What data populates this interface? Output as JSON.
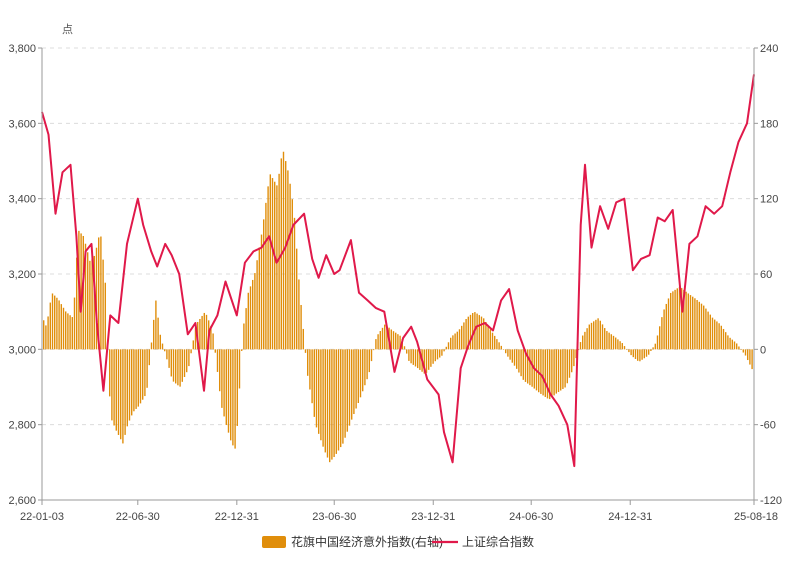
{
  "chart_data": {
    "type": "bar+line",
    "unit_label_left": "点",
    "left_axis": {
      "ylim": [
        2600,
        3800
      ],
      "ticks": [
        "2,600",
        "2,800",
        "3,000",
        "3,200",
        "3,400",
        "3,600",
        "3,800"
      ]
    },
    "right_axis": {
      "ylim": [
        -120,
        240
      ],
      "ticks": [
        "-120",
        "-60",
        "0",
        "60",
        "120",
        "180",
        "240"
      ]
    },
    "x_axis": {
      "ticks": [
        "22-01-03",
        "22-06-30",
        "22-12-31",
        "23-06-30",
        "23-12-31",
        "24-06-30",
        "24-12-31",
        "25-08-18"
      ]
    },
    "grid": "horizontal dashed",
    "legend_position": "bottom-center",
    "colors": {
      "bars": "#E08E0B",
      "line": "#E0194A",
      "axis": "#9a9a9a",
      "grid": "#d9d9d9"
    },
    "series": [
      {
        "name": "花旗中国经济意外指数(右轴)",
        "kind": "bar",
        "axis": "right",
        "points": [
          [
            "22-01-03",
            25
          ],
          [
            "22-01-10",
            18
          ],
          [
            "22-01-20",
            45
          ],
          [
            "22-02-01",
            40
          ],
          [
            "22-02-15",
            30
          ],
          [
            "22-03-01",
            25
          ],
          [
            "22-03-10",
            95
          ],
          [
            "22-03-20",
            90
          ],
          [
            "22-04-01",
            70
          ],
          [
            "22-04-10",
            75
          ],
          [
            "22-04-20",
            95
          ],
          [
            "22-04-30",
            50
          ],
          [
            "22-05-05",
            -20
          ],
          [
            "22-05-10",
            -55
          ],
          [
            "22-05-20",
            -65
          ],
          [
            "22-06-01",
            -75
          ],
          [
            "22-06-10",
            -60
          ],
          [
            "22-06-20",
            -50
          ],
          [
            "22-07-01",
            -45
          ],
          [
            "22-07-15",
            -35
          ],
          [
            "22-08-01",
            40
          ],
          [
            "22-08-10",
            10
          ],
          [
            "22-08-20",
            -5
          ],
          [
            "22-09-01",
            -25
          ],
          [
            "22-09-15",
            -30
          ],
          [
            "22-10-01",
            -15
          ],
          [
            "22-10-15",
            20
          ],
          [
            "22-11-01",
            30
          ],
          [
            "22-11-15",
            15
          ],
          [
            "22-12-01",
            -45
          ],
          [
            "22-12-10",
            -60
          ],
          [
            "22-12-20",
            -75
          ],
          [
            "22-12-28",
            -80
          ],
          [
            "23-01-10",
            15
          ],
          [
            "23-01-20",
            45
          ],
          [
            "23-02-01",
            60
          ],
          [
            "23-02-15",
            95
          ],
          [
            "23-03-01",
            140
          ],
          [
            "23-03-15",
            130
          ],
          [
            "23-03-25",
            160
          ],
          [
            "23-04-05",
            140
          ],
          [
            "23-04-15",
            110
          ],
          [
            "23-04-25",
            50
          ],
          [
            "23-05-10",
            -20
          ],
          [
            "23-05-25",
            -60
          ],
          [
            "23-06-10",
            -80
          ],
          [
            "23-06-20",
            -90
          ],
          [
            "23-06-30",
            -85
          ],
          [
            "23-07-15",
            -75
          ],
          [
            "23-08-01",
            -55
          ],
          [
            "23-08-15",
            -40
          ],
          [
            "23-09-01",
            -20
          ],
          [
            "23-09-15",
            10
          ],
          [
            "23-10-01",
            20
          ],
          [
            "23-10-15",
            15
          ],
          [
            "23-11-01",
            10
          ],
          [
            "23-11-15",
            -10
          ],
          [
            "23-12-01",
            -15
          ],
          [
            "23-12-15",
            -20
          ],
          [
            "24-01-01",
            -10
          ],
          [
            "24-01-15",
            -5
          ],
          [
            "24-02-01",
            10
          ],
          [
            "24-02-15",
            15
          ],
          [
            "24-03-01",
            25
          ],
          [
            "24-03-15",
            30
          ],
          [
            "24-04-01",
            25
          ],
          [
            "24-04-15",
            15
          ],
          [
            "24-05-01",
            5
          ],
          [
            "24-05-15",
            -5
          ],
          [
            "24-06-01",
            -15
          ],
          [
            "24-06-15",
            -25
          ],
          [
            "24-07-01",
            -30
          ],
          [
            "24-07-15",
            -35
          ],
          [
            "24-08-01",
            -40
          ],
          [
            "24-08-15",
            -35
          ],
          [
            "24-09-01",
            -30
          ],
          [
            "24-09-15",
            -15
          ],
          [
            "24-10-01",
            10
          ],
          [
            "24-10-15",
            20
          ],
          [
            "24-11-01",
            25
          ],
          [
            "24-11-15",
            15
          ],
          [
            "24-12-01",
            10
          ],
          [
            "24-12-15",
            5
          ],
          [
            "25-01-01",
            -5
          ],
          [
            "25-01-15",
            -10
          ],
          [
            "25-02-01",
            -5
          ],
          [
            "25-02-15",
            5
          ],
          [
            "25-03-01",
            30
          ],
          [
            "25-03-15",
            45
          ],
          [
            "25-04-01",
            50
          ],
          [
            "25-04-15",
            45
          ],
          [
            "25-05-01",
            40
          ],
          [
            "25-05-15",
            35
          ],
          [
            "25-06-01",
            25
          ],
          [
            "25-06-15",
            20
          ],
          [
            "25-07-01",
            10
          ],
          [
            "25-07-15",
            5
          ],
          [
            "25-08-01",
            -5
          ],
          [
            "25-08-18",
            -20
          ]
        ]
      },
      {
        "name": "上证综合指数",
        "kind": "line",
        "axis": "left",
        "points": [
          [
            "22-01-03",
            3630
          ],
          [
            "22-01-15",
            3570
          ],
          [
            "22-01-28",
            3360
          ],
          [
            "22-02-10",
            3470
          ],
          [
            "22-02-25",
            3490
          ],
          [
            "22-03-08",
            3300
          ],
          [
            "22-03-16",
            3100
          ],
          [
            "22-03-25",
            3260
          ],
          [
            "22-04-05",
            3280
          ],
          [
            "22-04-15",
            3070
          ],
          [
            "22-04-27",
            2890
          ],
          [
            "22-05-10",
            3090
          ],
          [
            "22-05-25",
            3070
          ],
          [
            "22-06-10",
            3280
          ],
          [
            "22-06-30",
            3400
          ],
          [
            "22-07-10",
            3330
          ],
          [
            "22-07-25",
            3260
          ],
          [
            "22-08-05",
            3220
          ],
          [
            "22-08-20",
            3280
          ],
          [
            "22-09-01",
            3250
          ],
          [
            "22-09-15",
            3200
          ],
          [
            "22-10-01",
            3040
          ],
          [
            "22-10-15",
            3070
          ],
          [
            "22-10-31",
            2890
          ],
          [
            "22-11-10",
            3050
          ],
          [
            "22-11-25",
            3090
          ],
          [
            "22-12-10",
            3180
          ],
          [
            "22-12-31",
            3090
          ],
          [
            "23-01-15",
            3230
          ],
          [
            "23-01-31",
            3260
          ],
          [
            "23-02-15",
            3270
          ],
          [
            "23-03-01",
            3300
          ],
          [
            "23-03-15",
            3230
          ],
          [
            "23-03-31",
            3270
          ],
          [
            "23-04-15",
            3330
          ],
          [
            "23-05-05",
            3360
          ],
          [
            "23-05-20",
            3240
          ],
          [
            "23-06-01",
            3190
          ],
          [
            "23-06-15",
            3250
          ],
          [
            "23-06-30",
            3200
          ],
          [
            "23-07-10",
            3210
          ],
          [
            "23-07-31",
            3290
          ],
          [
            "23-08-15",
            3150
          ],
          [
            "23-08-31",
            3130
          ],
          [
            "23-09-15",
            3110
          ],
          [
            "23-10-01",
            3100
          ],
          [
            "23-10-20",
            2940
          ],
          [
            "23-11-05",
            3030
          ],
          [
            "23-11-20",
            3060
          ],
          [
            "23-12-01",
            3020
          ],
          [
            "23-12-20",
            2920
          ],
          [
            "24-01-10",
            2880
          ],
          [
            "24-01-20",
            2780
          ],
          [
            "24-02-05",
            2700
          ],
          [
            "24-02-20",
            2950
          ],
          [
            "24-03-05",
            3010
          ],
          [
            "24-03-20",
            3060
          ],
          [
            "24-04-05",
            3070
          ],
          [
            "24-04-20",
            3050
          ],
          [
            "24-05-05",
            3130
          ],
          [
            "24-05-20",
            3160
          ],
          [
            "24-06-05",
            3050
          ],
          [
            "24-06-20",
            2990
          ],
          [
            "24-07-05",
            2950
          ],
          [
            "24-07-20",
            2930
          ],
          [
            "24-08-05",
            2880
          ],
          [
            "24-08-20",
            2850
          ],
          [
            "24-09-05",
            2800
          ],
          [
            "24-09-18",
            2690
          ],
          [
            "24-09-30",
            3330
          ],
          [
            "24-10-08",
            3490
          ],
          [
            "24-10-20",
            3270
          ],
          [
            "24-11-05",
            3380
          ],
          [
            "24-11-20",
            3320
          ],
          [
            "24-12-05",
            3390
          ],
          [
            "24-12-20",
            3400
          ],
          [
            "25-01-05",
            3210
          ],
          [
            "25-01-20",
            3240
          ],
          [
            "25-02-05",
            3250
          ],
          [
            "25-02-20",
            3350
          ],
          [
            "25-03-05",
            3340
          ],
          [
            "25-03-20",
            3370
          ],
          [
            "25-04-07",
            3100
          ],
          [
            "25-04-20",
            3280
          ],
          [
            "25-05-05",
            3300
          ],
          [
            "25-05-20",
            3380
          ],
          [
            "25-06-05",
            3360
          ],
          [
            "25-06-20",
            3380
          ],
          [
            "25-07-05",
            3470
          ],
          [
            "25-07-20",
            3550
          ],
          [
            "25-08-05",
            3600
          ],
          [
            "25-08-18",
            3730
          ]
        ]
      }
    ]
  }
}
